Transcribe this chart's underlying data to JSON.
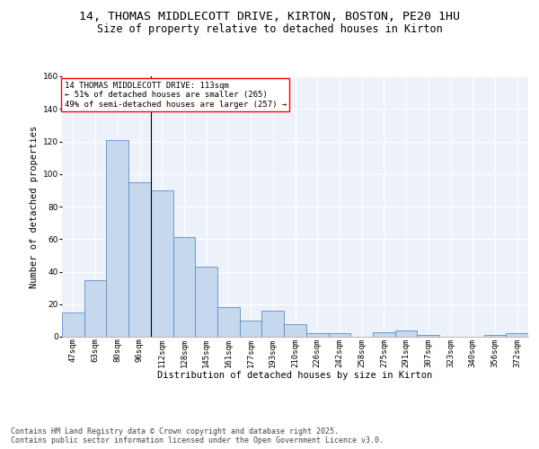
{
  "title_line1": "14, THOMAS MIDDLECOTT DRIVE, KIRTON, BOSTON, PE20 1HU",
  "title_line2": "Size of property relative to detached houses in Kirton",
  "xlabel": "Distribution of detached houses by size in Kirton",
  "ylabel": "Number of detached properties",
  "categories": [
    "47sqm",
    "63sqm",
    "80sqm",
    "96sqm",
    "112sqm",
    "128sqm",
    "145sqm",
    "161sqm",
    "177sqm",
    "193sqm",
    "210sqm",
    "226sqm",
    "242sqm",
    "258sqm",
    "275sqm",
    "291sqm",
    "307sqm",
    "323sqm",
    "340sqm",
    "356sqm",
    "372sqm"
  ],
  "bar_values": [
    15,
    35,
    121,
    95,
    90,
    61,
    43,
    18,
    10,
    16,
    8,
    2,
    2,
    0,
    3,
    4,
    1,
    0,
    0,
    1,
    2
  ],
  "bar_color": "#c5d8ed",
  "bar_edge_color": "#5b8ec4",
  "annotation_text": "14 THOMAS MIDDLECOTT DRIVE: 113sqm\n← 51% of detached houses are smaller (265)\n49% of semi-detached houses are larger (257) →",
  "vline_x_index": 4.0,
  "ylim": [
    0,
    160
  ],
  "yticks": [
    0,
    20,
    40,
    60,
    80,
    100,
    120,
    140,
    160
  ],
  "background_color": "#edf2fa",
  "grid_color": "#ffffff",
  "footer_text": "Contains HM Land Registry data © Crown copyright and database right 2025.\nContains public sector information licensed under the Open Government Licence v3.0.",
  "title_fontsize": 9.5,
  "subtitle_fontsize": 8.5,
  "annotation_fontsize": 6.5,
  "axis_label_fontsize": 7.5,
  "tick_fontsize": 6.5,
  "footer_fontsize": 6.0
}
